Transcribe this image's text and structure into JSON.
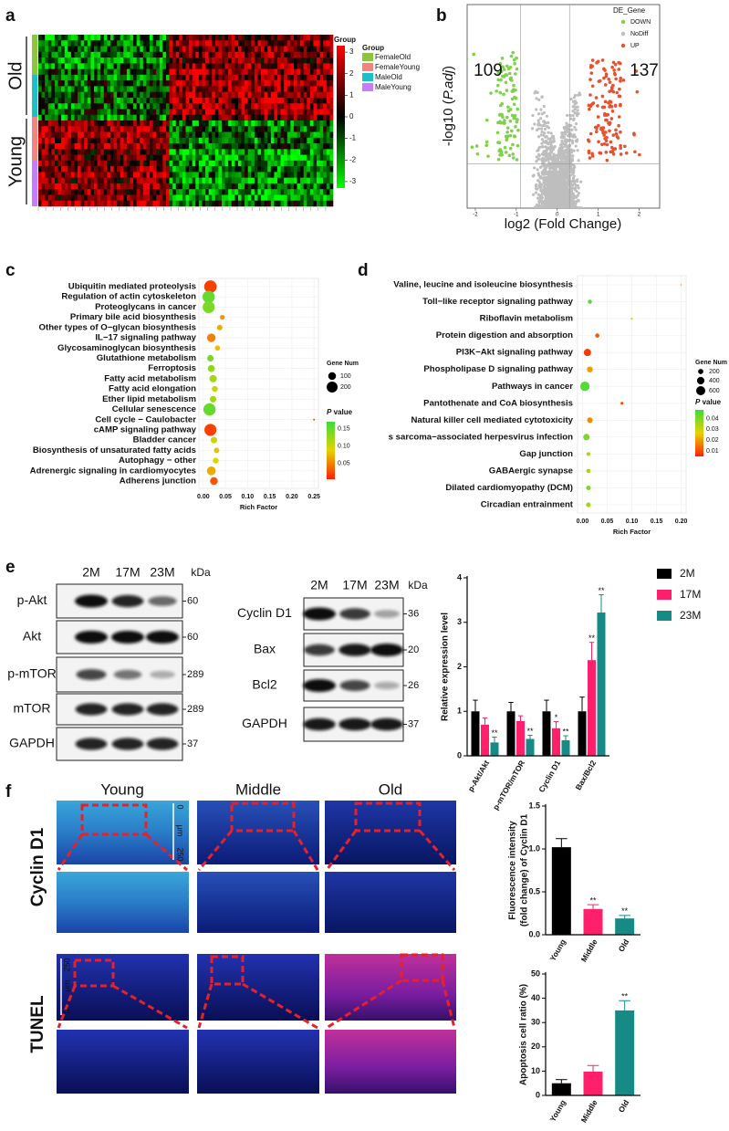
{
  "panel_labels": [
    "a",
    "b",
    "c",
    "d",
    "e",
    "f"
  ],
  "heatmap": {
    "row_labels": [
      "Old",
      "Young"
    ],
    "colorbar_title": "Group",
    "colorbar_ticks": [
      3,
      2,
      1,
      0,
      -1,
      -2,
      -3
    ],
    "colorbar_lim": [
      -3.3,
      3.3
    ],
    "legend_title": "Group",
    "groups": [
      {
        "name": "FemaleOld",
        "color": "#8cc63f"
      },
      {
        "name": "FemaleYoung",
        "color": "#f4837d"
      },
      {
        "name": "MaleOld",
        "color": "#1ec0c8"
      },
      {
        "name": "MaleYoung",
        "color": "#c77cff"
      }
    ]
  },
  "chart_data": [
    {
      "type": "scatter",
      "xlabel": "log2 (Fold Change)",
      "ylabel_parts": [
        "-log10 (",
        "P.adj",
        ")"
      ],
      "xlim": [
        -2.2,
        2.5
      ],
      "ylim": [
        0,
        6
      ],
      "xticks": [
        -2,
        -1,
        0,
        1,
        2
      ],
      "vlines": [
        -0.9,
        0.3
      ],
      "hline": 1.3,
      "legend_title": "DE_Gene",
      "series": [
        {
          "name": "DOWN",
          "color": "#7fd04a"
        },
        {
          "name": "NoDiff",
          "color": "#bebebe"
        },
        {
          "name": "UP",
          "color": "#e9502f"
        }
      ],
      "annotations": [
        {
          "value": 109,
          "color": "#3cb44b"
        },
        {
          "value": 137,
          "color": "#e8281e"
        }
      ]
    },
    {
      "type": "dot",
      "categories": [
        "Ubiquitin mediated proteolysis",
        "Regulation of actin cytoskeleton",
        "Proteoglycans in cancer",
        "Primary bile acid biosynthesis",
        "Other types of O−glycan biosynthesis",
        "IL−17 signaling pathway",
        "Glycosaminoglycan biosynthesis",
        "Glutathione metabolism",
        "Ferroptosis",
        "Fatty acid metabolism",
        "Fatty acid elongation",
        "Ether lipid metabolism",
        "Cellular senescence",
        "Cell cycle − Caulobacter",
        "cAMP signaling pathway",
        "Bladder cancer",
        "Biosynthesis of unsaturated fatty acids",
        "Autophagy − other",
        "Adrenergic signaling in cardiomyocytes",
        "Adherens junction"
      ],
      "values": [
        0.016,
        0.012,
        0.012,
        0.043,
        0.037,
        0.018,
        0.032,
        0.016,
        0.018,
        0.022,
        0.026,
        0.022,
        0.014,
        0.25,
        0.016,
        0.024,
        0.03,
        0.028,
        0.018,
        0.024
      ],
      "sizes": [
        260,
        250,
        240,
        40,
        50,
        120,
        45,
        70,
        80,
        90,
        60,
        70,
        250,
        5,
        240,
        70,
        50,
        55,
        130,
        100
      ],
      "pvalues": [
        0.02,
        0.15,
        0.14,
        0.06,
        0.07,
        0.05,
        0.08,
        0.14,
        0.13,
        0.12,
        0.1,
        0.12,
        0.15,
        0.01,
        0.02,
        0.1,
        0.08,
        0.09,
        0.07,
        0.03
      ],
      "xlim": [
        -0.01,
        0.26
      ],
      "xticks": [
        {
          "value": 0,
          "label": "0.00"
        },
        {
          "value": 0.05,
          "label": "0.05"
        },
        {
          "value": 0.1,
          "label": "0.10"
        },
        {
          "value": 0.15,
          "label": "0.15"
        },
        {
          "value": 0.2,
          "label": "0.20"
        },
        {
          "value": 0.25,
          "label": "0.25"
        }
      ],
      "xlabel": "Rich Factor",
      "size_title": "Gene Num",
      "size_ticks": [
        100,
        200
      ],
      "color_title_parts": [
        "P",
        "value"
      ],
      "clim": [
        0.005,
        0.17
      ],
      "color_ticks": [
        {
          "value": 0.15,
          "label": "0.15"
        },
        {
          "value": 0.1,
          "label": "0.10"
        },
        {
          "value": 0.05,
          "label": "0.05"
        }
      ]
    },
    {
      "type": "dot",
      "categories": [
        "Valine, leucine and isoleucine biosynthesis",
        "Toll−like receptor signaling pathway",
        "Riboflavin metabolism",
        "Protein digestion and absorption",
        "PI3K−Akt signaling pathway",
        "Phospholipase D signaling pathway",
        "Pathways in cancer",
        "Pantothenate and CoA biosynthesis",
        "Natural killer cell mediated cytotoxicity",
        "s sarcoma−associated herpesvirus infection",
        "Gap junction",
        "GABAergic synapse",
        "Dilated cardiomyopathy (DCM)",
        "Circadian entrainment"
      ],
      "values": [
        0.2,
        0.015,
        0.1,
        0.03,
        0.01,
        0.015,
        0.005,
        0.08,
        0.015,
        0.008,
        0.012,
        0.012,
        0.012,
        0.012
      ],
      "sizes": [
        10,
        120,
        30,
        130,
        380,
        250,
        650,
        60,
        220,
        300,
        110,
        130,
        150,
        160
      ],
      "pvalues": [
        0.012,
        0.045,
        0.03,
        0.012,
        0.008,
        0.02,
        0.045,
        0.01,
        0.018,
        0.04,
        0.035,
        0.035,
        0.04,
        0.035
      ],
      "highlight": 4,
      "highlight_color": "#e8202a",
      "xlim": [
        -0.01,
        0.21
      ],
      "xticks": [
        {
          "value": 0,
          "label": "0.00"
        },
        {
          "value": 0.05,
          "label": "0.05"
        },
        {
          "value": 0.1,
          "label": "0.10"
        },
        {
          "value": 0.15,
          "label": "0.15"
        },
        {
          "value": 0.2,
          "label": "0.20"
        }
      ],
      "xlabel": "Rich Factor",
      "size_title": "Gene Num",
      "size_ticks": [
        200,
        400,
        600
      ],
      "color_title_parts": [
        "P",
        "value"
      ],
      "clim": [
        0.005,
        0.048
      ],
      "color_ticks": [
        {
          "value": 0.04,
          "label": "0.04"
        },
        {
          "value": 0.03,
          "label": "0.03"
        },
        {
          "value": 0.02,
          "label": "0.02"
        },
        {
          "value": 0.01,
          "label": "0.01"
        }
      ]
    },
    {
      "type": "bar",
      "ylabel": "Relative expression level",
      "categories": [
        "p-Akt/Akt",
        "p-mTOR/mTOR",
        "Cyclin D1",
        "Bax/Bcl2"
      ],
      "ylim": [
        0,
        4
      ],
      "yticks": [
        0,
        1,
        2,
        3,
        4
      ],
      "series": [
        {
          "name": "2M",
          "color": "#000000",
          "values": [
            1,
            1,
            1,
            1
          ],
          "errors": [
            0.25,
            0.2,
            0.25,
            0.32
          ],
          "significance": [
            null,
            null,
            null,
            null
          ]
        },
        {
          "name": "17M",
          "color": "#ff1f6b",
          "values": [
            0.7,
            0.78,
            0.62,
            2.15
          ],
          "errors": [
            0.15,
            0.12,
            0.15,
            0.4
          ],
          "significance": [
            null,
            null,
            "*",
            "**"
          ]
        },
        {
          "name": "23M",
          "color": "#178a86",
          "values": [
            0.3,
            0.38,
            0.35,
            3.22
          ],
          "errors": [
            0.12,
            0.08,
            0.1,
            0.4
          ],
          "significance": [
            "**",
            "**",
            "**",
            "**"
          ]
        }
      ]
    },
    {
      "type": "bar",
      "ylabel": [
        "Fluorescence intensity",
        "(fold change) of Cyclin D1"
      ],
      "categories": [
        "Young",
        "Middle",
        "Old"
      ],
      "colors": [
        "#000000",
        "#ff1f6b",
        "#178a86"
      ],
      "values": [
        1.02,
        0.3,
        0.19
      ],
      "errors": [
        0.1,
        0.05,
        0.035
      ],
      "significance": [
        null,
        "**",
        "**"
      ],
      "ylim": [
        0,
        1.5
      ],
      "yticks": [
        {
          "value": 0,
          "label": "0.0"
        },
        {
          "value": 0.5,
          "label": "0.5"
        },
        {
          "value": 1,
          "label": "1.0"
        },
        {
          "value": 1.5,
          "label": "1.5"
        }
      ]
    },
    {
      "type": "bar",
      "ylabel": "Apoptosis cell ratio (%)",
      "categories": [
        "Young",
        "Middle",
        "Old"
      ],
      "colors": [
        "#000000",
        "#ff1f6b",
        "#178a86"
      ],
      "values": [
        5,
        9.8,
        35
      ],
      "errors": [
        1.5,
        2.5,
        4
      ],
      "significance": [
        null,
        null,
        "**"
      ],
      "ylim": [
        0,
        50
      ],
      "yticks": [
        0,
        10,
        20,
        30,
        40,
        50
      ]
    }
  ],
  "blots": [
    {
      "lanes": [
        "2M",
        "17M",
        "23M"
      ],
      "unit": "kDa",
      "rows": [
        {
          "name": "p-Akt",
          "kda": 60
        },
        {
          "name": "Akt",
          "kda": 60
        },
        {
          "name": "p-mTOR",
          "kda": 289
        },
        {
          "name": "mTOR",
          "kda": 289
        },
        {
          "name": "GAPDH",
          "kda": 37
        }
      ]
    },
    {
      "lanes": [
        "2M",
        "17M",
        "23M"
      ],
      "unit": "kDa",
      "rows": [
        {
          "name": "Cyclin D1",
          "kda": 36
        },
        {
          "name": "Bax",
          "kda": 20
        },
        {
          "name": "Bcl2",
          "kda": 26
        },
        {
          "name": "GAPDH",
          "kda": 37
        }
      ]
    }
  ],
  "images": {
    "columns": [
      "Young",
      "Middle",
      "Old"
    ],
    "rows": [
      "Cyclin D1",
      "TUNEL"
    ],
    "row_colors": [
      "#1aa64b",
      "#e8202a"
    ],
    "scale_labels": [
      "0",
      "μm",
      "250"
    ]
  }
}
